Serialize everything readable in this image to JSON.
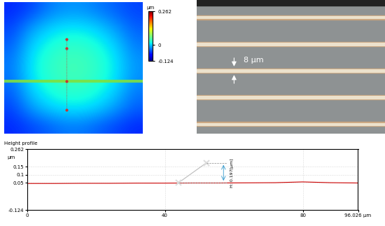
{
  "chart_data": [
    {
      "type": "heatmap",
      "tick_labels": false,
      "cells": [
        [
          -0.06,
          -0.05,
          -0.03,
          -0.02,
          -0.02,
          -0.03,
          -0.04,
          -0.05
        ],
        [
          -0.05,
          -0.02,
          0.0,
          0.01,
          0.01,
          0.0,
          -0.02,
          -0.04
        ],
        [
          -0.04,
          0.0,
          0.02,
          0.03,
          0.03,
          0.02,
          0.0,
          -0.03
        ],
        [
          -0.03,
          0.01,
          0.03,
          0.04,
          0.04,
          0.03,
          0.01,
          -0.02
        ],
        [
          -0.03,
          0.01,
          0.03,
          0.04,
          0.04,
          0.03,
          0.01,
          -0.02
        ],
        [
          -0.04,
          0.0,
          0.02,
          0.03,
          0.03,
          0.02,
          0.0,
          -0.03
        ],
        [
          -0.05,
          -0.02,
          0.0,
          0.01,
          0.01,
          0.0,
          -0.02,
          -0.04
        ],
        [
          -0.06,
          -0.05,
          -0.04,
          -0.03,
          -0.03,
          -0.04,
          -0.05,
          -0.06
        ]
      ],
      "colorbar": {
        "label": "µm",
        "range": [
          -0.124,
          0.262
        ],
        "ticks": [
          -0.124,
          0,
          0.262
        ]
      }
    },
    {
      "type": "line",
      "title": "Height profile",
      "ylabel": "µm",
      "x": [
        0,
        8,
        16,
        24,
        32,
        40,
        48,
        56,
        64,
        72,
        80,
        88,
        96.026
      ],
      "values": [
        0.045,
        0.045,
        0.046,
        0.046,
        0.047,
        0.047,
        0.048,
        0.048,
        0.049,
        0.05,
        0.055,
        0.05,
        0.048
      ],
      "color": "#cc0000",
      "xlim": [
        0,
        96.026
      ],
      "xticks": [
        0,
        40,
        80,
        {
          "value": 96.026,
          "label": "96.026 µm"
        }
      ],
      "ylim": [
        -0.124,
        0.262
      ],
      "yticks": [
        -0.124,
        0.05,
        0.1,
        0.15,
        0.262
      ],
      "grid": true,
      "annotation": {
        "points": [
          [
            44,
            0.05
          ],
          [
            52,
            0.175
          ]
        ],
        "label": "H: 0.197[µm]"
      }
    }
  ],
  "micrograph": {
    "annotation": "8 µm"
  }
}
